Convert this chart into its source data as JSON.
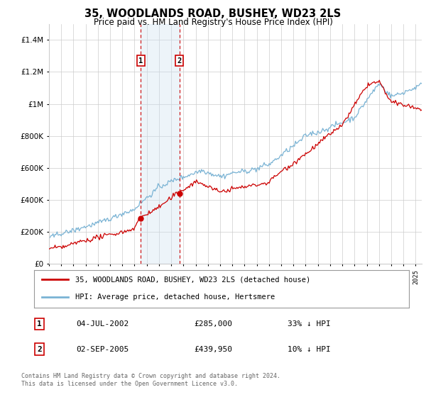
{
  "title": "35, WOODLANDS ROAD, BUSHEY, WD23 2LS",
  "subtitle": "Price paid vs. HM Land Registry's House Price Index (HPI)",
  "footer": "Contains HM Land Registry data © Crown copyright and database right 2024.\nThis data is licensed under the Open Government Licence v3.0.",
  "legend_line1": "35, WOODLANDS ROAD, BUSHEY, WD23 2LS (detached house)",
  "legend_line2": "HPI: Average price, detached house, Hertsmere",
  "sale1_date": "04-JUL-2002",
  "sale1_price": "£285,000",
  "sale1_hpi": "33% ↓ HPI",
  "sale1_year": 2002.5,
  "sale1_value": 285000,
  "sale2_date": "02-SEP-2005",
  "sale2_price": "£439,950",
  "sale2_hpi": "10% ↓ HPI",
  "sale2_year": 2005.67,
  "sale2_value": 439950,
  "red_color": "#cc0000",
  "blue_color": "#7ab3d4",
  "shade_color": "#cce0f0",
  "grid_color": "#cccccc",
  "background_color": "#ffffff",
  "ylim": [
    0,
    1500000
  ],
  "xlim_start": 1995,
  "xlim_end": 2025.5,
  "marker_y": 1250000
}
